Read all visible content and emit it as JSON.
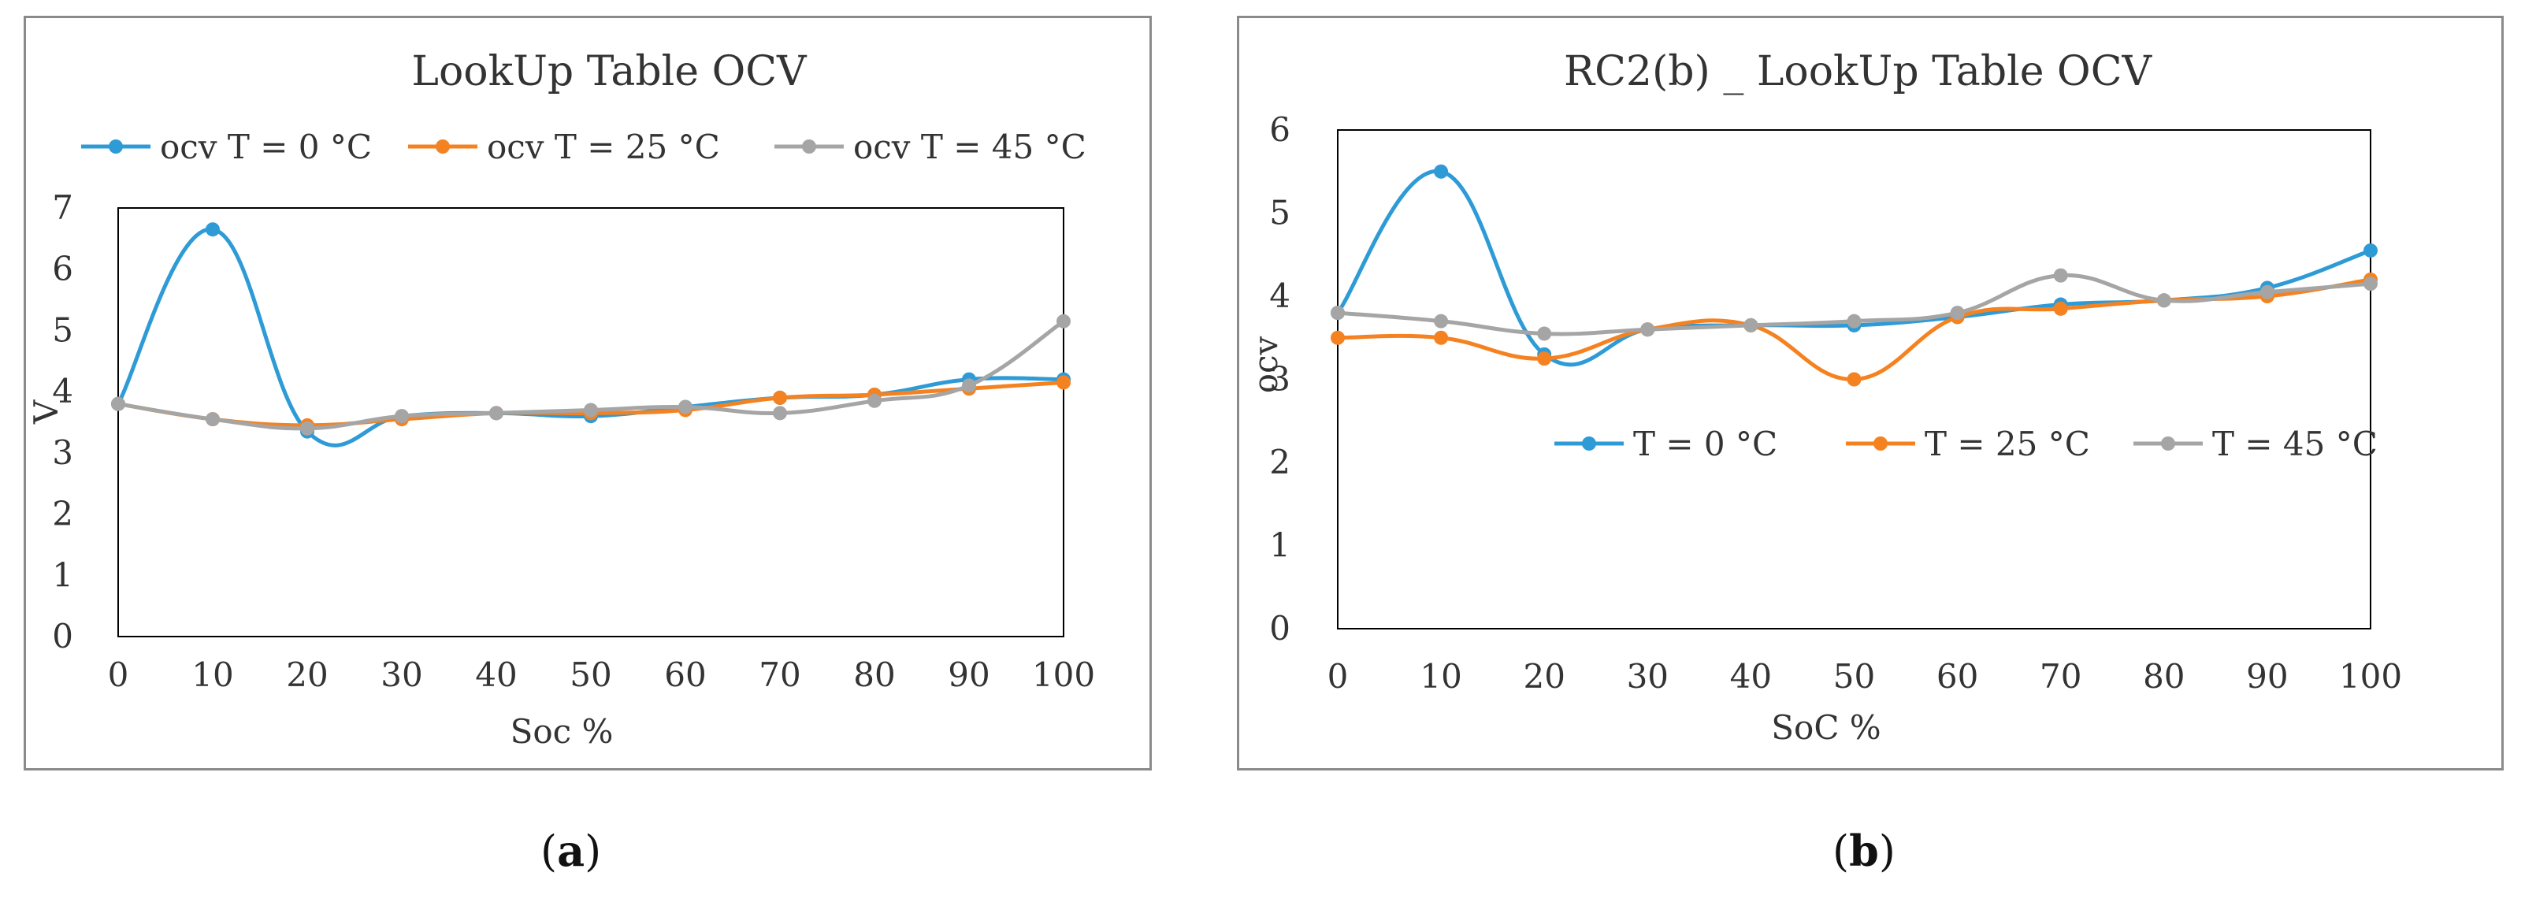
{
  "chart_data": [
    {
      "id": "a",
      "type": "line",
      "title": "LookUp Table OCV",
      "xlabel": "Soc %",
      "ylabel": "V",
      "x": [
        0,
        10,
        20,
        30,
        40,
        50,
        60,
        70,
        80,
        90,
        100
      ],
      "ylim": [
        0,
        7
      ],
      "yticks": [
        0,
        1,
        2,
        3,
        4,
        5,
        6,
        7
      ],
      "plot_frame": true,
      "legend_position": "top",
      "series": [
        {
          "name": "ocv T = 0 °C",
          "color": "#2E9BD6",
          "values": [
            3.8,
            6.65,
            3.35,
            3.6,
            3.65,
            3.6,
            3.75,
            3.9,
            3.95,
            4.2,
            4.2
          ]
        },
        {
          "name": "ocv T = 25 °C",
          "color": "#F58220",
          "values": [
            3.8,
            3.55,
            3.45,
            3.55,
            3.65,
            3.65,
            3.7,
            3.9,
            3.95,
            4.05,
            4.15
          ]
        },
        {
          "name": "ocv T = 45 °C",
          "color": "#A5A5A5",
          "values": [
            3.8,
            3.55,
            3.4,
            3.6,
            3.65,
            3.7,
            3.75,
            3.65,
            3.85,
            4.1,
            5.15
          ]
        }
      ]
    },
    {
      "id": "b",
      "type": "line",
      "title": "RC2(b) _ LookUp Table OCV",
      "xlabel": "SoC %",
      "ylabel": "ocv",
      "x": [
        0,
        10,
        20,
        30,
        40,
        50,
        60,
        70,
        80,
        90,
        100
      ],
      "ylim": [
        0,
        6
      ],
      "yticks": [
        0,
        1,
        2,
        3,
        4,
        5,
        6
      ],
      "plot_frame": true,
      "legend_position": "middle",
      "series": [
        {
          "name": "T = 0 °C",
          "color": "#2E9BD6",
          "values": [
            3.8,
            5.5,
            3.3,
            3.6,
            3.65,
            3.65,
            3.75,
            3.9,
            3.95,
            4.1,
            4.55
          ]
        },
        {
          "name": "T = 25 °C",
          "color": "#F58220",
          "values": [
            3.5,
            3.5,
            3.25,
            3.6,
            3.65,
            3.0,
            3.75,
            3.85,
            3.95,
            4.0,
            4.2
          ]
        },
        {
          "name": "T = 45 °C",
          "color": "#A5A5A5",
          "values": [
            3.8,
            3.7,
            3.55,
            3.6,
            3.65,
            3.7,
            3.8,
            4.25,
            3.95,
            4.05,
            4.15
          ]
        }
      ]
    }
  ],
  "captions": {
    "a": {
      "open": "(",
      "letter": "a",
      "close": ")"
    },
    "b": {
      "open": "(",
      "letter": "b",
      "close": ")"
    }
  }
}
